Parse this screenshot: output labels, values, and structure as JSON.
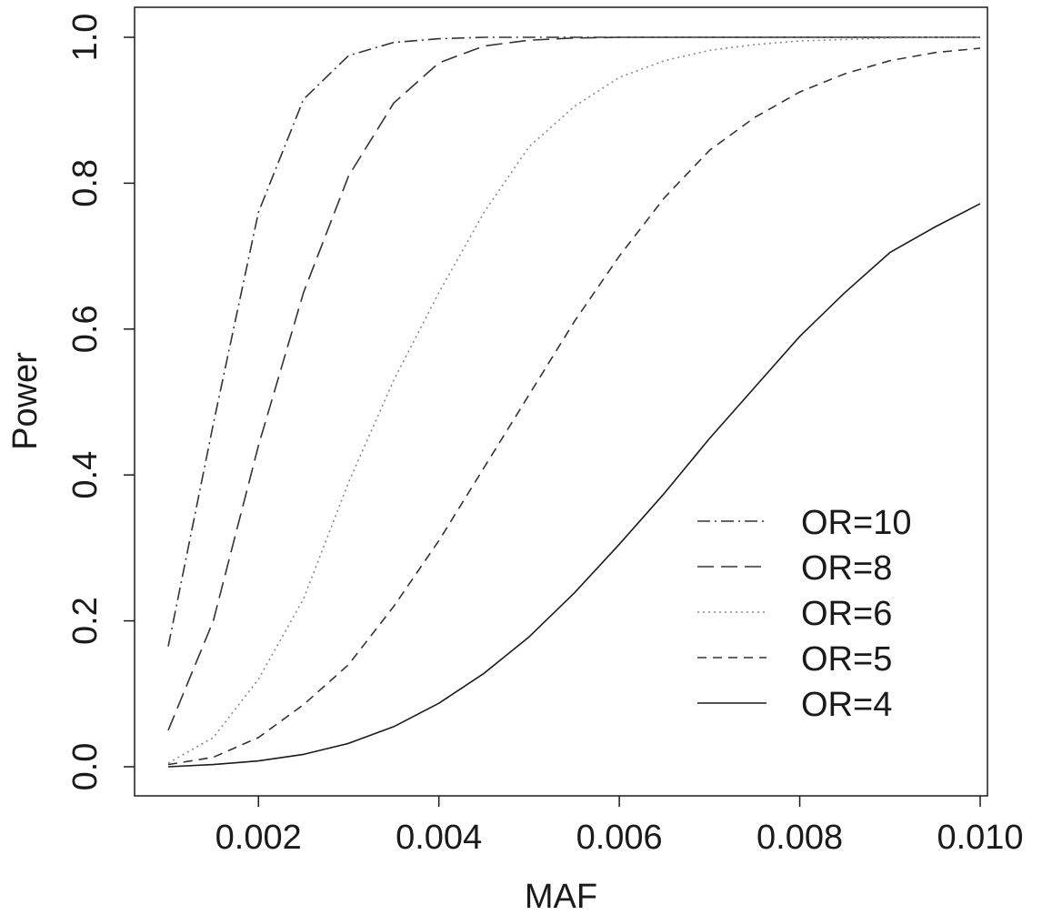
{
  "chart_data": {
    "type": "line",
    "title": "",
    "xlabel": "MAF",
    "ylabel": "Power",
    "xlim": [
      0.001,
      0.01
    ],
    "ylim": [
      0.0,
      1.0
    ],
    "x_ticks": [
      "0.002",
      "0.004",
      "0.006",
      "0.008",
      "0.010"
    ],
    "y_ticks": [
      "0.0",
      "0.2",
      "0.4",
      "0.6",
      "0.8",
      "1.0"
    ],
    "grid": false,
    "legend_position": "bottom-right",
    "x": [
      0.001,
      0.0015,
      0.002,
      0.0025,
      0.003,
      0.0035,
      0.004,
      0.0045,
      0.005,
      0.0055,
      0.006,
      0.0065,
      0.007,
      0.0075,
      0.008,
      0.0085,
      0.009,
      0.0095,
      0.01
    ],
    "series": [
      {
        "name": "OR=10",
        "line_style": "dashdot",
        "color": "#333333",
        "values": [
          0.165,
          0.47,
          0.76,
          0.915,
          0.975,
          0.993,
          0.998,
          1.0,
          1.0,
          1.0,
          1.0,
          1.0,
          1.0,
          1.0,
          1.0,
          1.0,
          1.0,
          1.0,
          1.0
        ]
      },
      {
        "name": "OR=8",
        "line_style": "longdash",
        "color": "#333333",
        "values": [
          0.05,
          0.2,
          0.44,
          0.65,
          0.81,
          0.91,
          0.965,
          0.988,
          0.996,
          0.999,
          1.0,
          1.0,
          1.0,
          1.0,
          1.0,
          1.0,
          1.0,
          1.0,
          1.0
        ]
      },
      {
        "name": "OR=6",
        "line_style": "dotted",
        "color": "#8a8a8a",
        "values": [
          0.005,
          0.04,
          0.12,
          0.23,
          0.39,
          0.53,
          0.65,
          0.76,
          0.85,
          0.905,
          0.945,
          0.968,
          0.982,
          0.99,
          0.995,
          0.997,
          0.999,
          1.0,
          1.0
        ]
      },
      {
        "name": "OR=5",
        "line_style": "dashed",
        "color": "#333333",
        "values": [
          0.003,
          0.013,
          0.04,
          0.085,
          0.14,
          0.22,
          0.31,
          0.41,
          0.51,
          0.61,
          0.7,
          0.78,
          0.845,
          0.89,
          0.925,
          0.95,
          0.968,
          0.979,
          0.985
        ]
      },
      {
        "name": "OR=4",
        "line_style": "solid",
        "color": "#1a1a1a",
        "values": [
          0.0,
          0.003,
          0.008,
          0.017,
          0.032,
          0.055,
          0.087,
          0.128,
          0.178,
          0.238,
          0.305,
          0.375,
          0.45,
          0.52,
          0.59,
          0.65,
          0.705,
          0.74,
          0.772
        ]
      }
    ]
  }
}
